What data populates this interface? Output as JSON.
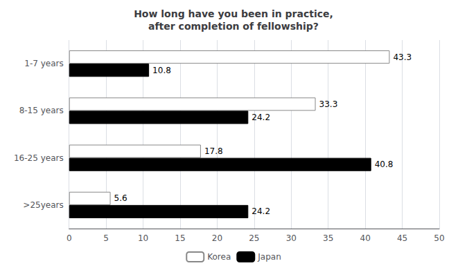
{
  "chart_data": {
    "type": "bar",
    "title": "How long have you been in practice,\nafter completion of fellowship?",
    "orientation": "horizontal",
    "categories": [
      "1-7 years",
      "8-15 years",
      "16-25 years",
      ">25years"
    ],
    "series": [
      {
        "name": "Korea",
        "color": "#ffffff",
        "values": [
          43.3,
          33.3,
          17.8,
          5.6
        ]
      },
      {
        "name": "Japan",
        "color": "#000000",
        "values": [
          10.8,
          24.2,
          40.8,
          24.2
        ]
      }
    ],
    "xlim": [
      0,
      50
    ],
    "xticks": [
      0,
      5,
      10,
      15,
      20,
      25,
      30,
      35,
      40,
      45,
      50
    ],
    "grid": true,
    "legend": "bottom",
    "data_labels": true
  }
}
